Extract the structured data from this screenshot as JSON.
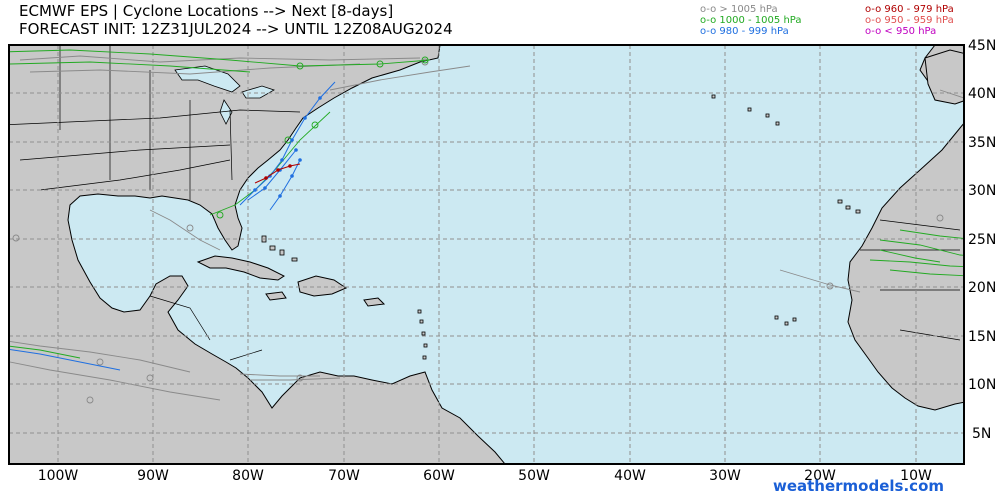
{
  "header": {
    "line1": "ECMWF EPS | Cyclone Locations --> Next [8-days]",
    "line2": "FORECAST INIT: 12Z31JUL2024 --> UNTIL 12Z08AUG2024"
  },
  "legend": [
    {
      "label": "o-o > 1005 hPa",
      "color": "#8a8a8a"
    },
    {
      "label": "o-o 1000 - 1005 hPa",
      "color": "#22aa22"
    },
    {
      "label": "o-o 980 - 999 hPa",
      "color": "#1f6fe0"
    },
    {
      "label": "o-o 960 - 979 hPa",
      "color": "#b00000"
    },
    {
      "label": "o-o 950 - 959 hPa",
      "color": "#e05050"
    },
    {
      "label": "o-o < 950 hPa",
      "color": "#c000c0"
    }
  ],
  "latitude_labels": [
    "45N",
    "40N",
    "35N",
    "30N",
    "25N",
    "20N",
    "15N",
    "10N",
    "5N"
  ],
  "longitude_labels": [
    "100W",
    "90W",
    "80W",
    "70W",
    "60W",
    "50W",
    "40W",
    "30W",
    "20W",
    "10W"
  ],
  "colors": {
    "ocean": "#cce9f2",
    "land": "#c8c8c8",
    "grid": "#8f8f8f",
    "brand": "#1a5fd6"
  },
  "branding": "weathermodels.com"
}
